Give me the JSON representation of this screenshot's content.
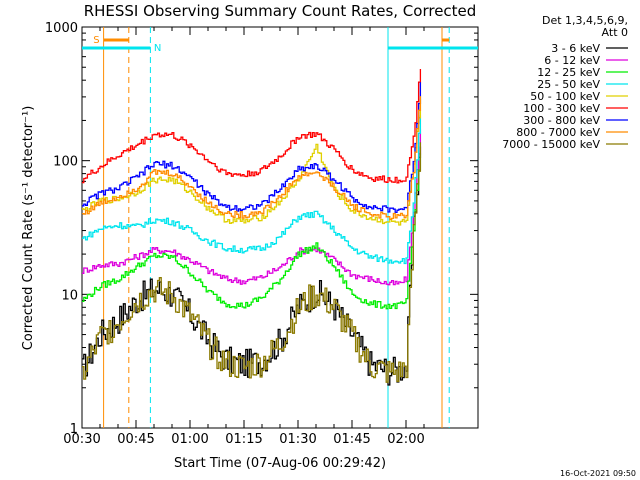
{
  "chart_data": {
    "type": "line",
    "title": "RHESSI Observing Summary Count Rates, Corrected",
    "xlabel": "Start Time (07-Aug-06 00:29:42)",
    "ylabel": "Corrected Count Rate (s⁻¹ detector⁻¹)",
    "yscale": "log",
    "ylim": [
      1,
      1000
    ],
    "xlim_minutes": [
      0,
      110
    ],
    "x_tick_labels": [
      "00:30",
      "00:45",
      "01:00",
      "01:15",
      "01:30",
      "01:45",
      "02:00"
    ],
    "x_tick_minutes": [
      0,
      15,
      30,
      45,
      60,
      75,
      90
    ],
    "y_tick_labels": [
      "1",
      "10",
      "100",
      "1000"
    ],
    "y_tick_values": [
      1,
      10,
      100,
      1000
    ],
    "legend_header": [
      "Det 1,3,4,5,6,9,",
      "Att 0"
    ],
    "legend_position": "right",
    "x_minutes": [
      0,
      5,
      10,
      15,
      20,
      25,
      30,
      35,
      40,
      45,
      50,
      55,
      60,
      65,
      70,
      75,
      80,
      85,
      88,
      90,
      92,
      94
    ],
    "series": [
      {
        "name": "3 - 6 keV",
        "color": "#000000",
        "values": [
          2.7,
          5,
          6.5,
          9,
          11,
          10,
          7,
          4.5,
          3.2,
          3,
          3.2,
          4.5,
          8,
          10.5,
          8,
          5,
          3,
          2.7,
          2.7,
          3,
          30,
          150
        ]
      },
      {
        "name": "6 - 12 keV",
        "color": "#dd00dd",
        "values": [
          15,
          16.5,
          17,
          19,
          21.5,
          21,
          18,
          15,
          13,
          12.5,
          13.5,
          16,
          21,
          22,
          18,
          14,
          13,
          12,
          12,
          13,
          40,
          170
        ]
      },
      {
        "name": "12 - 25 keV",
        "color": "#00ee00",
        "values": [
          9,
          11.5,
          13,
          16,
          19.5,
          19,
          14.5,
          10.5,
          8.5,
          8.2,
          9.5,
          13,
          20,
          23,
          16,
          10,
          8.5,
          8.2,
          8.2,
          8.8,
          30,
          120
        ]
      },
      {
        "name": "25 - 50 keV",
        "color": "#00e5ee",
        "values": [
          26,
          31,
          33,
          32,
          36,
          35,
          30,
          25,
          22,
          21.5,
          22,
          27,
          38,
          40,
          30,
          22,
          19,
          18,
          18,
          18,
          50,
          220
        ]
      },
      {
        "name": "50 - 100 keV",
        "color": "#e0d000",
        "values": [
          42,
          50,
          52,
          58,
          72,
          72,
          58,
          44,
          36,
          35,
          38,
          50,
          72,
          128,
          60,
          42,
          37,
          35,
          34,
          35,
          90,
          280
        ]
      },
      {
        "name": "100 - 300 keV",
        "color": "#ff0000",
        "values": [
          72,
          90,
          110,
          130,
          158,
          155,
          130,
          100,
          80,
          78,
          85,
          108,
          152,
          158,
          120,
          85,
          74,
          72,
          72,
          75,
          150,
          500
        ]
      },
      {
        "name": "300 - 800 keV",
        "color": "#0000ff",
        "values": [
          47,
          57,
          62,
          75,
          95,
          92,
          75,
          55,
          45,
          44,
          47,
          62,
          87,
          92,
          72,
          52,
          45,
          43,
          43,
          45,
          100,
          380
        ]
      },
      {
        "name": "800 - 7000 keV",
        "color": "#ff8c00",
        "values": [
          40,
          48,
          54,
          62,
          82,
          80,
          64,
          48,
          40,
          39,
          42,
          54,
          76,
          82,
          63,
          46,
          40,
          38,
          38,
          40,
          85,
          320
        ]
      },
      {
        "name": "7000 - 15000 keV",
        "color": "#8b7a00",
        "values": [
          2.5,
          4.8,
          6.2,
          8.8,
          10.8,
          9.8,
          6.8,
          4.3,
          3,
          2.8,
          3.1,
          4.3,
          7.8,
          10.2,
          7.8,
          4.8,
          2.9,
          2.6,
          2.6,
          2.9,
          28,
          140
        ]
      }
    ],
    "vertical_lines": [
      {
        "minute": 6,
        "style": "solid",
        "color": "#ff8c00"
      },
      {
        "minute": 13,
        "style": "dashed",
        "color": "#ff8c00"
      },
      {
        "minute": 19,
        "style": "dashed",
        "color": "#00e5ee"
      },
      {
        "minute": 85,
        "style": "solid",
        "color": "#00e5ee"
      },
      {
        "minute": 100,
        "style": "solid",
        "color": "#ff8c00"
      },
      {
        "minute": 102,
        "style": "dashed",
        "color": "#00e5ee"
      }
    ],
    "annotations": [
      {
        "label": "S",
        "color": "#ff8c00",
        "minute": 4
      },
      {
        "label": "N",
        "color": "#00e5ee",
        "minute": 21
      }
    ],
    "footer_date": "16-Oct-2021 09:50"
  }
}
